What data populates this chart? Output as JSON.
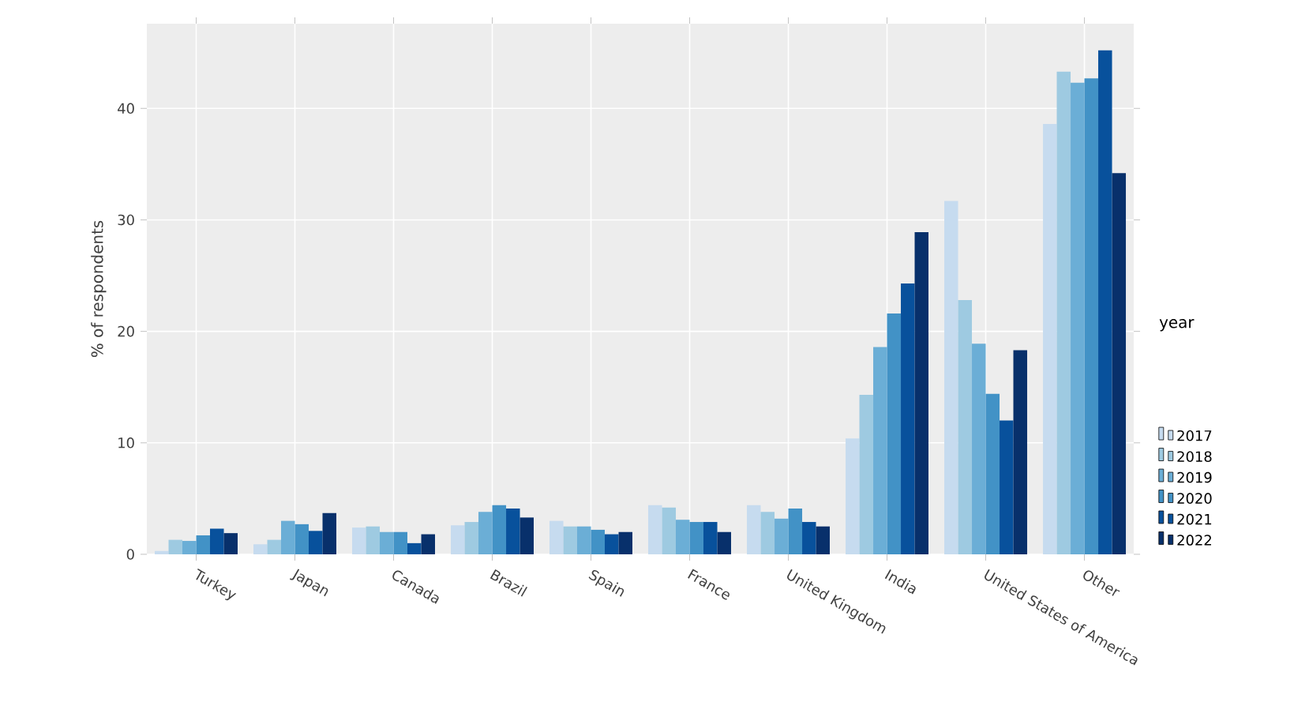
{
  "chart_data": {
    "type": "bar",
    "xlabel": null,
    "ylabel": "% of respondents",
    "legend_title": "year",
    "categories": [
      "Turkey",
      "Japan",
      "Canada",
      "Brazil",
      "Spain",
      "France",
      "United Kingdom",
      "India",
      "United States of America",
      "Other"
    ],
    "series": [
      {
        "name": "2017",
        "color": "#c6dbef",
        "values": [
          0.3,
          0.9,
          2.4,
          2.6,
          3.0,
          4.4,
          4.4,
          10.4,
          31.7,
          38.6
        ]
      },
      {
        "name": "2018",
        "color": "#9ecae1",
        "values": [
          1.3,
          1.3,
          2.5,
          2.9,
          2.5,
          4.2,
          3.8,
          14.3,
          22.8,
          43.3
        ]
      },
      {
        "name": "2019",
        "color": "#6baed6",
        "values": [
          1.2,
          3.0,
          2.0,
          3.8,
          2.5,
          3.1,
          3.2,
          18.6,
          18.9,
          42.3
        ]
      },
      {
        "name": "2020",
        "color": "#4292c6",
        "values": [
          1.7,
          2.7,
          2.0,
          4.4,
          2.2,
          2.9,
          4.1,
          21.6,
          14.4,
          42.7
        ]
      },
      {
        "name": "2021",
        "color": "#08519c",
        "values": [
          2.3,
          2.1,
          1.0,
          4.1,
          1.8,
          2.9,
          2.9,
          24.3,
          12.0,
          45.2
        ]
      },
      {
        "name": "2022",
        "color": "#08306b",
        "values": [
          1.9,
          3.7,
          1.8,
          3.3,
          2.0,
          2.0,
          2.5,
          28.9,
          18.3,
          34.2
        ]
      }
    ],
    "ylim": [
      0,
      47.6
    ],
    "yticks": [
      0,
      10,
      20,
      30,
      40
    ],
    "grid": true,
    "legend": "right"
  }
}
